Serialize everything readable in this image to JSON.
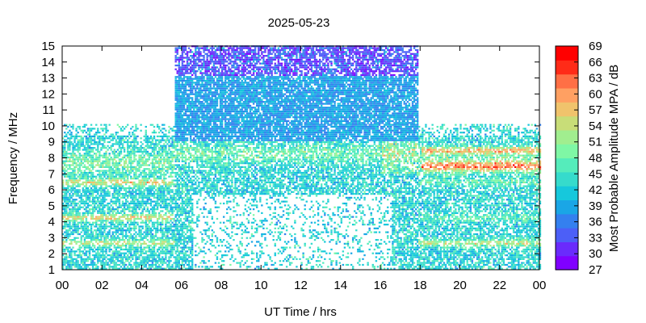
{
  "chart_data": {
    "type": "heatmap",
    "title": "2025-05-23",
    "xlabel": "UT Time / hrs",
    "ylabel": "Frequency / MHz",
    "xlim": [
      0,
      24
    ],
    "ylim": [
      1,
      15
    ],
    "x_ticks": [
      "00",
      "02",
      "04",
      "06",
      "08",
      "10",
      "12",
      "14",
      "16",
      "18",
      "20",
      "22",
      "00"
    ],
    "y_ticks": [
      "1",
      "2",
      "3",
      "4",
      "5",
      "6",
      "7",
      "8",
      "9",
      "10",
      "11",
      "12",
      "13",
      "14",
      "15"
    ],
    "colorbar": {
      "label": "Most Probable Amplitude MPA / dB",
      "range": [
        27,
        69
      ],
      "ticks": [
        "27",
        "30",
        "33",
        "36",
        "39",
        "42",
        "45",
        "48",
        "51",
        "54",
        "57",
        "60",
        "63",
        "66",
        "69"
      ],
      "colors": [
        "#8000ff",
        "#6a2bfc",
        "#4c5ff7",
        "#3480ef",
        "#1aa6e6",
        "#16c8dc",
        "#36dbcc",
        "#55ecbb",
        "#7ff7a5",
        "#a1ee8f",
        "#c8dd78",
        "#f0c36c",
        "#ffa062",
        "#ff6f45",
        "#ff2b18",
        "#ff0000"
      ]
    },
    "coverage": [
      {
        "hours": "00-05.5",
        "max_mhz": 10
      },
      {
        "hours": "05.5-18",
        "max_mhz": 15
      },
      {
        "hours": "18-24",
        "max_mhz": 10
      }
    ]
  }
}
